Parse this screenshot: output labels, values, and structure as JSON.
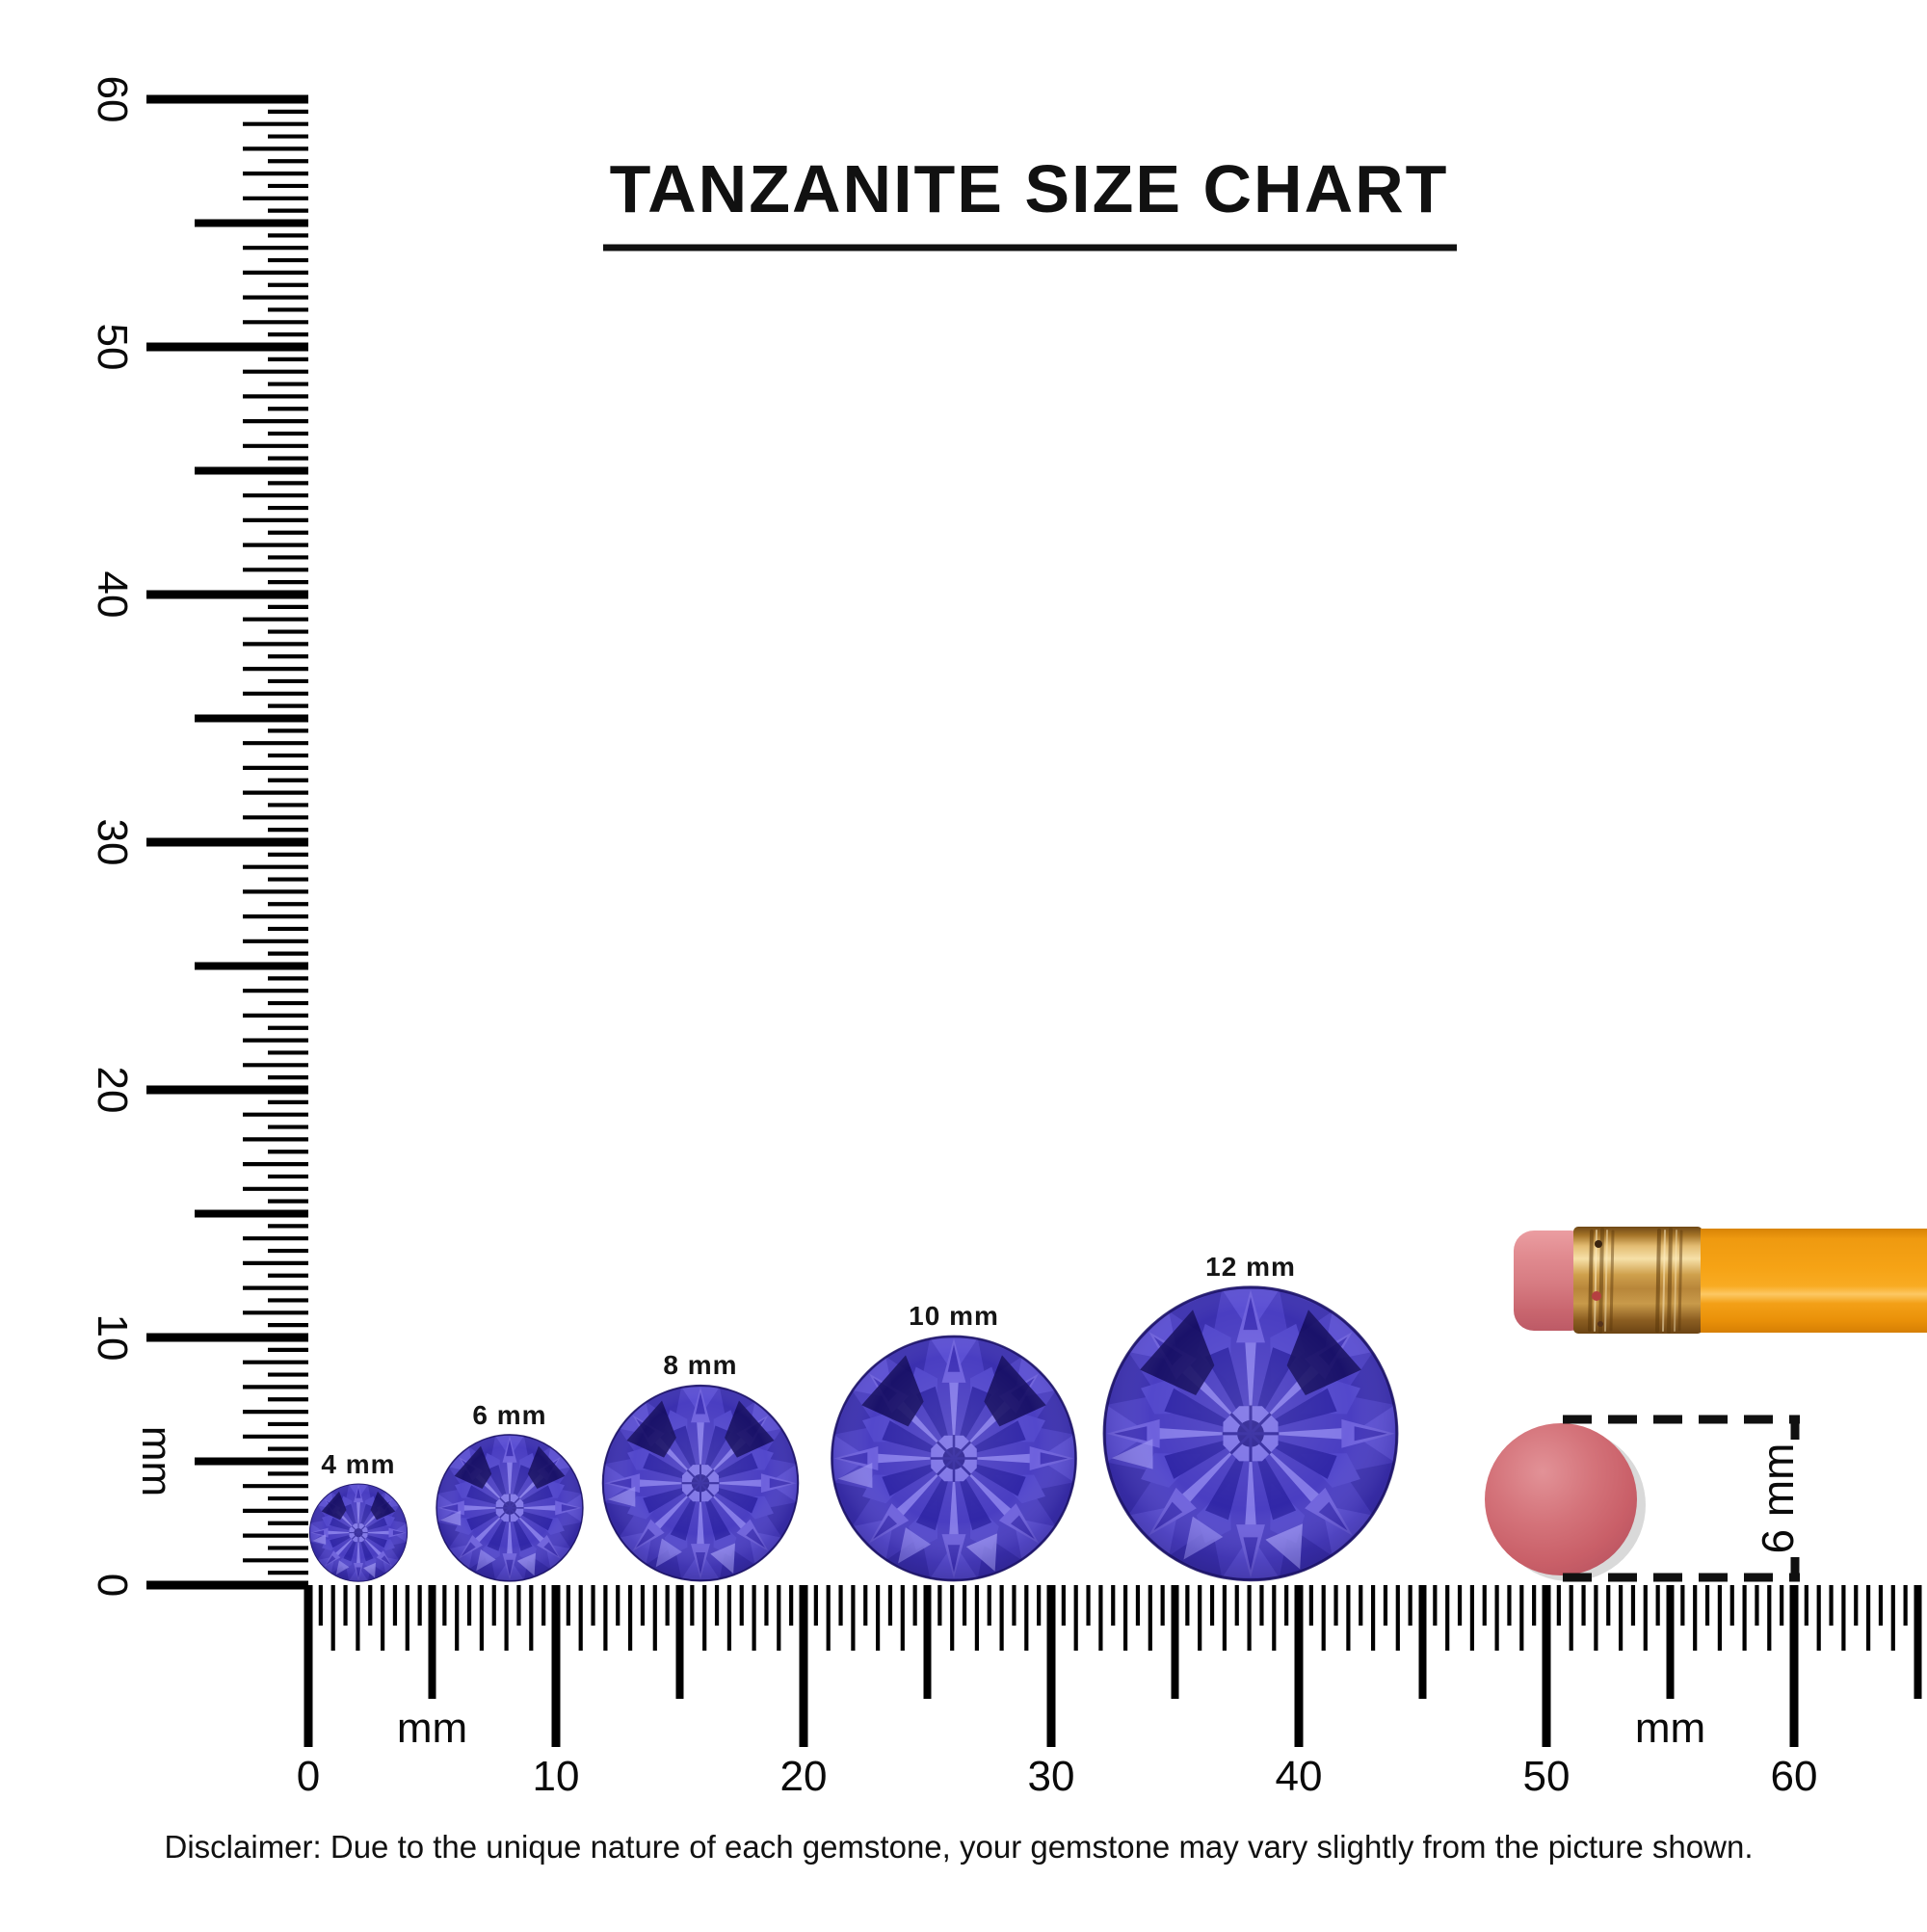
{
  "title": "TANZANITE SIZE CHART",
  "disclaimer": "Disclaimer: Due to the unique nature of each gemstone, your gemstone may vary slightly from the picture shown.",
  "rulers": {
    "vertical": {
      "unit_label": "mm",
      "major_labels": [
        "0",
        "10",
        "20",
        "30",
        "40",
        "50",
        "60"
      ],
      "range_mm": [
        0,
        60
      ]
    },
    "horizontal": {
      "unit_label": "mm",
      "major_labels": [
        "0",
        "10",
        "20",
        "30",
        "40",
        "50",
        "60"
      ],
      "range_mm": [
        0,
        60
      ],
      "unit_label_positions_mm": [
        5,
        55
      ]
    }
  },
  "gems": [
    {
      "label": "4 mm",
      "size_mm": 4
    },
    {
      "label": "6 mm",
      "size_mm": 6
    },
    {
      "label": "8 mm",
      "size_mm": 8
    },
    {
      "label": "10 mm",
      "size_mm": 10
    },
    {
      "label": "12 mm",
      "size_mm": 12
    }
  ],
  "eraser_measure": {
    "label": "6 mm",
    "size_mm": 6
  },
  "colors": {
    "ink": "#000000",
    "gem_base": "#4a3ec2",
    "gem_light": "#867ce9",
    "gem_dark": "#2e23a4",
    "gem_darkest": "#150d60",
    "pencil_body": "#f6a315",
    "ferrule_gold": "#c79544",
    "eraser_pink": "#d67a81",
    "eraser_disc": "#cd646c"
  }
}
